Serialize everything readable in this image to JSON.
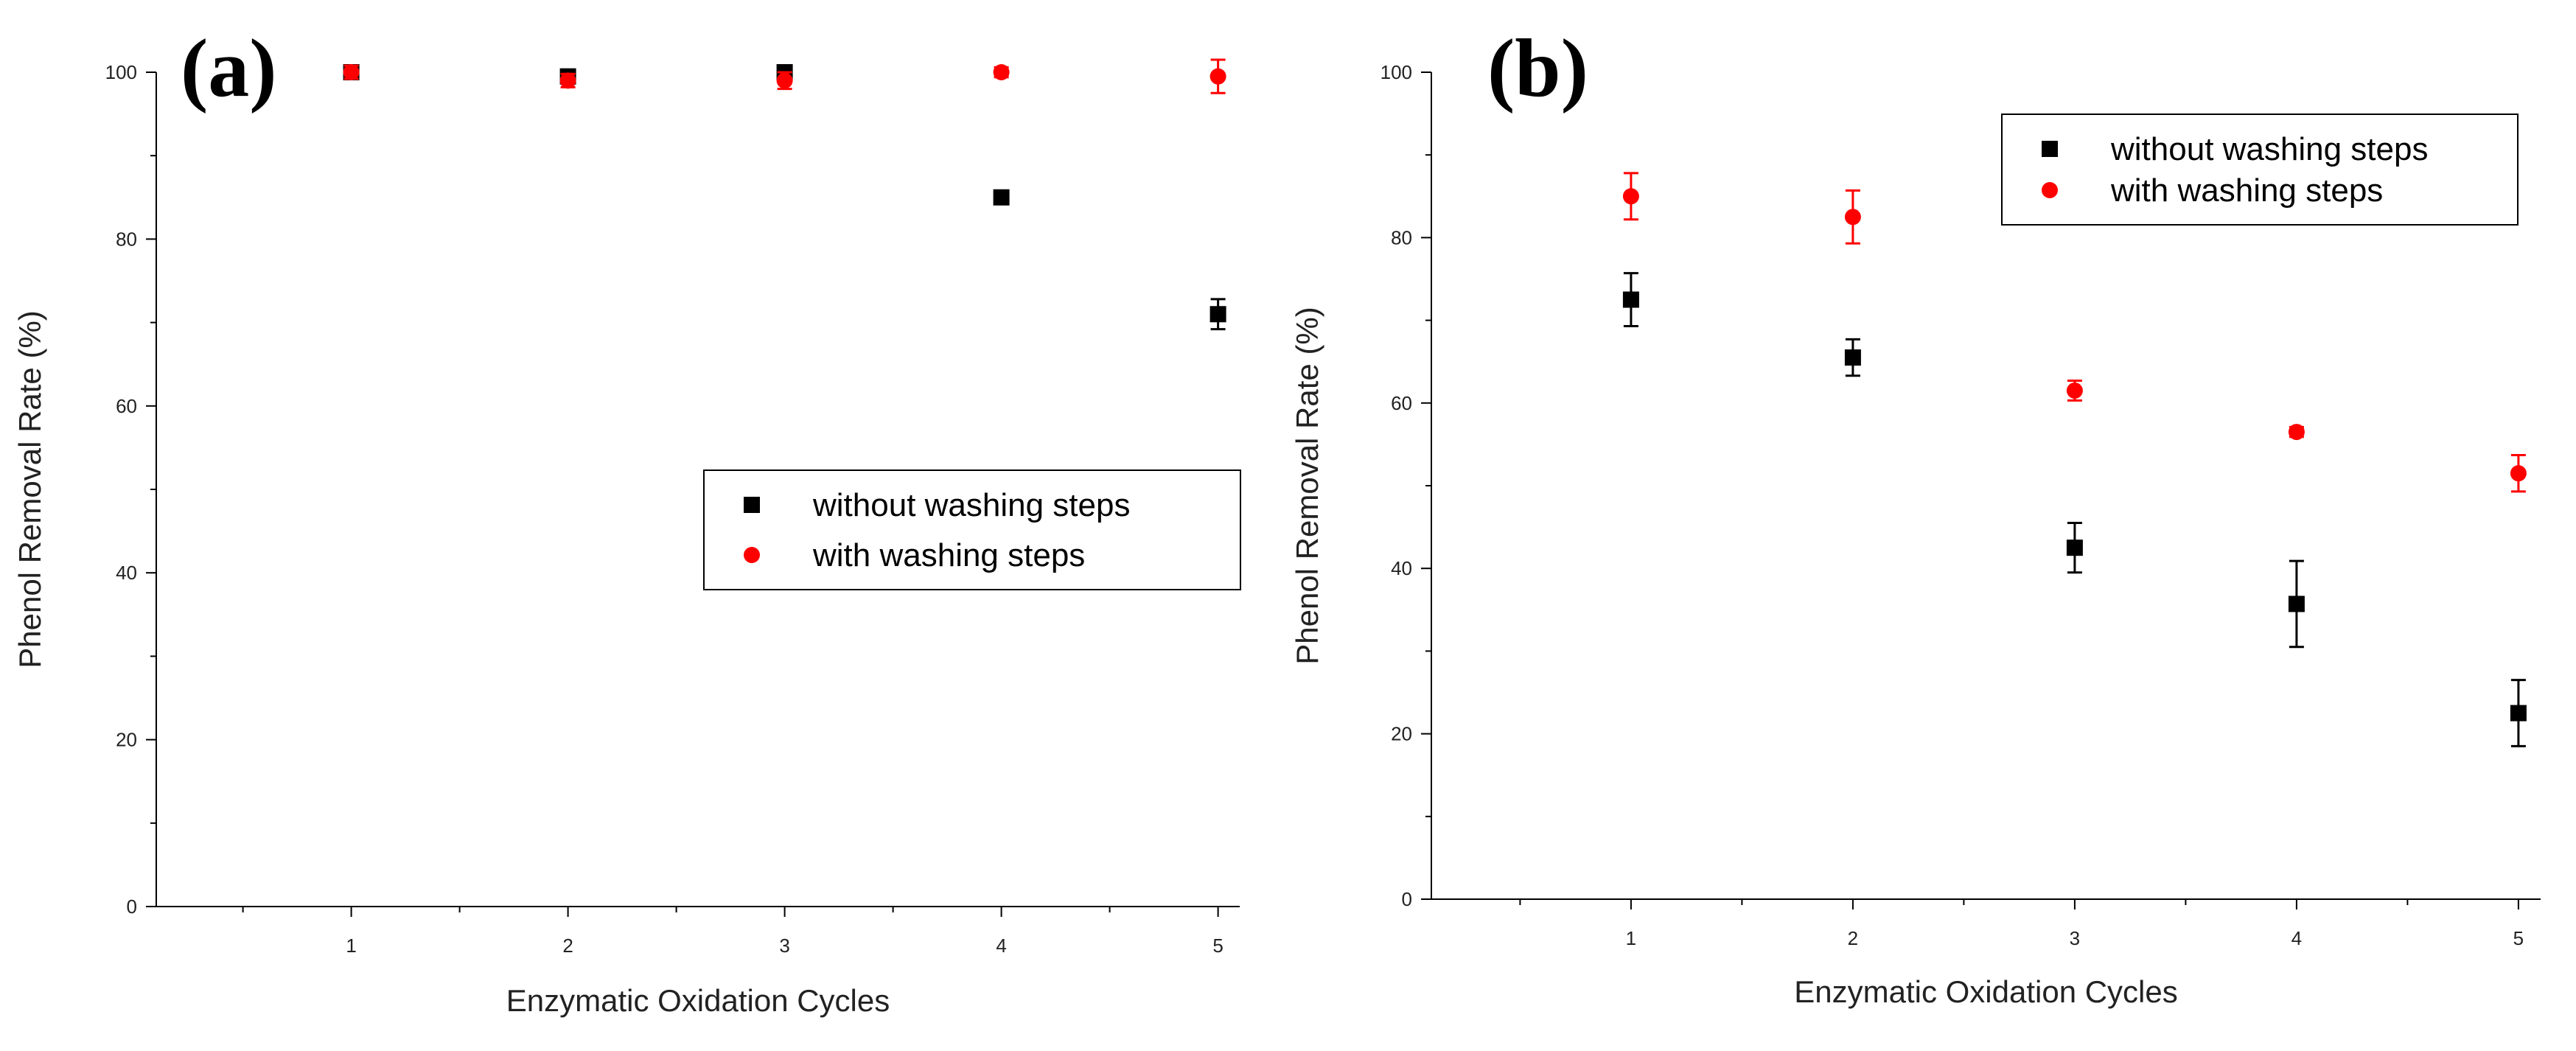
{
  "chart_data": [
    {
      "type": "scatter",
      "panel_label": "(a)",
      "xlabel": "Enzymatic Oxidation Cycles",
      "ylabel": "Phenol Removal Rate (%)",
      "xlim": [
        0.1,
        5.1
      ],
      "ylim": [
        0,
        100
      ],
      "xticks": [
        1,
        2,
        3,
        4,
        5
      ],
      "yticks": [
        0,
        20,
        40,
        60,
        80,
        100
      ],
      "grid": false,
      "legend_position": "center-right",
      "series": [
        {
          "name": "without washing steps",
          "marker": "square",
          "color": "#000000",
          "x": [
            1,
            2,
            3,
            4,
            5
          ],
          "y": [
            100,
            99.5,
            100,
            85,
            71
          ],
          "err": [
            0.6,
            0.6,
            0.6,
            0.8,
            1.8
          ]
        },
        {
          "name": "with washing steps",
          "marker": "circle",
          "color": "#ff0000",
          "x": [
            1,
            2,
            3,
            4,
            5
          ],
          "y": [
            100,
            99,
            99,
            100,
            99.5
          ],
          "err": [
            0.8,
            0.8,
            1.0,
            0.6,
            2.0
          ]
        }
      ]
    },
    {
      "type": "scatter",
      "panel_label": "(b)",
      "xlabel": "Enzymatic Oxidation Cycles",
      "ylabel": "Phenol Removal Rate (%)",
      "xlim": [
        0.1,
        5.1
      ],
      "ylim": [
        0,
        100
      ],
      "xticks": [
        1,
        2,
        3,
        4,
        5
      ],
      "yticks": [
        0,
        20,
        40,
        60,
        80,
        100
      ],
      "grid": false,
      "legend_position": "top-right",
      "series": [
        {
          "name": "without washing steps",
          "marker": "square",
          "color": "#000000",
          "x": [
            1,
            2,
            3,
            4,
            5
          ],
          "y": [
            72.5,
            65.5,
            42.5,
            35.7,
            22.5
          ],
          "err": [
            3.2,
            2.2,
            3.0,
            5.2,
            4.0
          ]
        },
        {
          "name": "with washing steps",
          "marker": "circle",
          "color": "#ff0000",
          "x": [
            1,
            2,
            3,
            4,
            5
          ],
          "y": [
            85,
            82.5,
            61.5,
            56.5,
            51.5
          ],
          "err": [
            2.8,
            3.2,
            1.2,
            0.6,
            2.2
          ]
        }
      ]
    }
  ]
}
